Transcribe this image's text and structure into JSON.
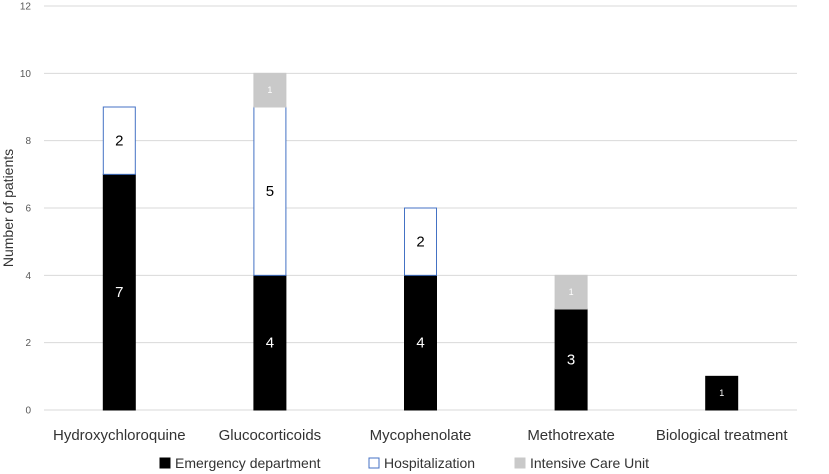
{
  "chart_data": {
    "type": "bar",
    "stacked": true,
    "title": "",
    "xlabel": "",
    "ylabel": "Number of patients",
    "ylim": [
      0,
      12
    ],
    "yticks": [
      0,
      2,
      4,
      6,
      8,
      10,
      12
    ],
    "grid": true,
    "legend_position": "bottom",
    "categories": [
      "Hydroxychloroquine",
      "Glucocorticoids",
      "Mycophenolate",
      "Methotrexate",
      "Biological treatment"
    ],
    "series": [
      {
        "name": "Emergency department",
        "values": [
          7,
          4,
          4,
          3,
          1
        ],
        "fill": "#000000",
        "stroke": "#000000",
        "label_color": "#ffffff"
      },
      {
        "name": "Hospitalization",
        "values": [
          2,
          5,
          2,
          0,
          0
        ],
        "fill": "#ffffff",
        "stroke": "#4472c4",
        "label_color": "#000000"
      },
      {
        "name": "Intensive Care Unit",
        "values": [
          0,
          1,
          0,
          1,
          0
        ],
        "fill": "#c9c9c9",
        "stroke": "#c9c9c9",
        "label_color": "#ffffff"
      }
    ]
  }
}
